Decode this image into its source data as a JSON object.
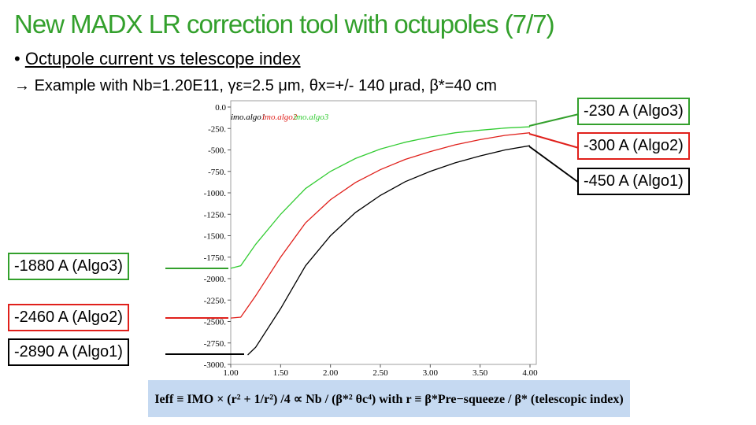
{
  "slide": {
    "title": "New MADX LR correction tool with octupoles (7/7)",
    "bullet": "Octupole current vs telescope index",
    "subtitle": "Example with Nb=1.20E11, γε=2.5 μm,  θx=+/- 140 μrad, β*=40 cm",
    "formula": "Ieff ≡ IMO × (r² + 1/r²) /4 ∝ Nb / (β*² θc⁴)   with   r ≡ β*Pre−squeeze / β*   (telescopic index)",
    "annotations": [
      "-230 A (Algo3)",
      "-300 A (Algo2)",
      "-450 A (Algo1)",
      "-1880 A (Algo3)",
      "-2460 A (Algo2)",
      "-2890 A (Algo1)"
    ]
  },
  "chart_data": {
    "type": "line",
    "xlim": [
      1.0,
      4.0
    ],
    "ylim": [
      -3000,
      0
    ],
    "xticks": [
      {
        "value": 1.0,
        "label": "1.00"
      },
      {
        "value": 1.5,
        "label": "1.50"
      },
      {
        "value": 2.0,
        "label": "2.00"
      },
      {
        "value": 2.5,
        "label": "2.50"
      },
      {
        "value": 3.0,
        "label": "3.00"
      },
      {
        "value": 3.5,
        "label": "3.50"
      },
      {
        "value": 4.0,
        "label": "4.00"
      }
    ],
    "yticks": [
      {
        "value": 0,
        "label": "0.0"
      },
      {
        "value": -250,
        "label": "-250."
      },
      {
        "value": -500,
        "label": "-500."
      },
      {
        "value": -750,
        "label": "-750."
      },
      {
        "value": -1000,
        "label": "-1000."
      },
      {
        "value": -1250,
        "label": "-1250."
      },
      {
        "value": -1500,
        "label": "-1500."
      },
      {
        "value": -1750,
        "label": "-1750."
      },
      {
        "value": -2000,
        "label": "-2000."
      },
      {
        "value": -2250,
        "label": "-2250."
      },
      {
        "value": -2500,
        "label": "-2500."
      },
      {
        "value": -2750,
        "label": "-2750."
      },
      {
        "value": -3000,
        "label": "-3000."
      }
    ],
    "series": [
      {
        "name": "imo.algo1",
        "color": "#000000",
        "x": [
          1.17,
          1.25,
          1.5,
          1.75,
          2.0,
          2.25,
          2.5,
          2.75,
          3.0,
          3.25,
          3.5,
          3.75,
          4.0
        ],
        "values": [
          -2890,
          -2800,
          -2350,
          -1850,
          -1500,
          -1230,
          -1030,
          -870,
          -750,
          -650,
          -570,
          -500,
          -450
        ]
      },
      {
        "name": "imo.algo2",
        "color": "#e0201b",
        "x": [
          1.0,
          1.1,
          1.25,
          1.5,
          1.75,
          2.0,
          2.25,
          2.5,
          2.75,
          3.0,
          3.25,
          3.5,
          3.75,
          4.0
        ],
        "values": [
          -2460,
          -2450,
          -2200,
          -1750,
          -1350,
          -1080,
          -880,
          -730,
          -610,
          -520,
          -440,
          -380,
          -330,
          -300
        ]
      },
      {
        "name": "imo.algo3",
        "color": "#33cc33",
        "x": [
          1.0,
          1.1,
          1.25,
          1.5,
          1.75,
          2.0,
          2.25,
          2.5,
          2.75,
          3.0,
          3.25,
          3.5,
          3.75,
          4.0
        ],
        "values": [
          -1880,
          -1850,
          -1600,
          -1250,
          -950,
          -750,
          -600,
          -490,
          -410,
          -350,
          -300,
          -270,
          -245,
          -230
        ]
      }
    ]
  }
}
